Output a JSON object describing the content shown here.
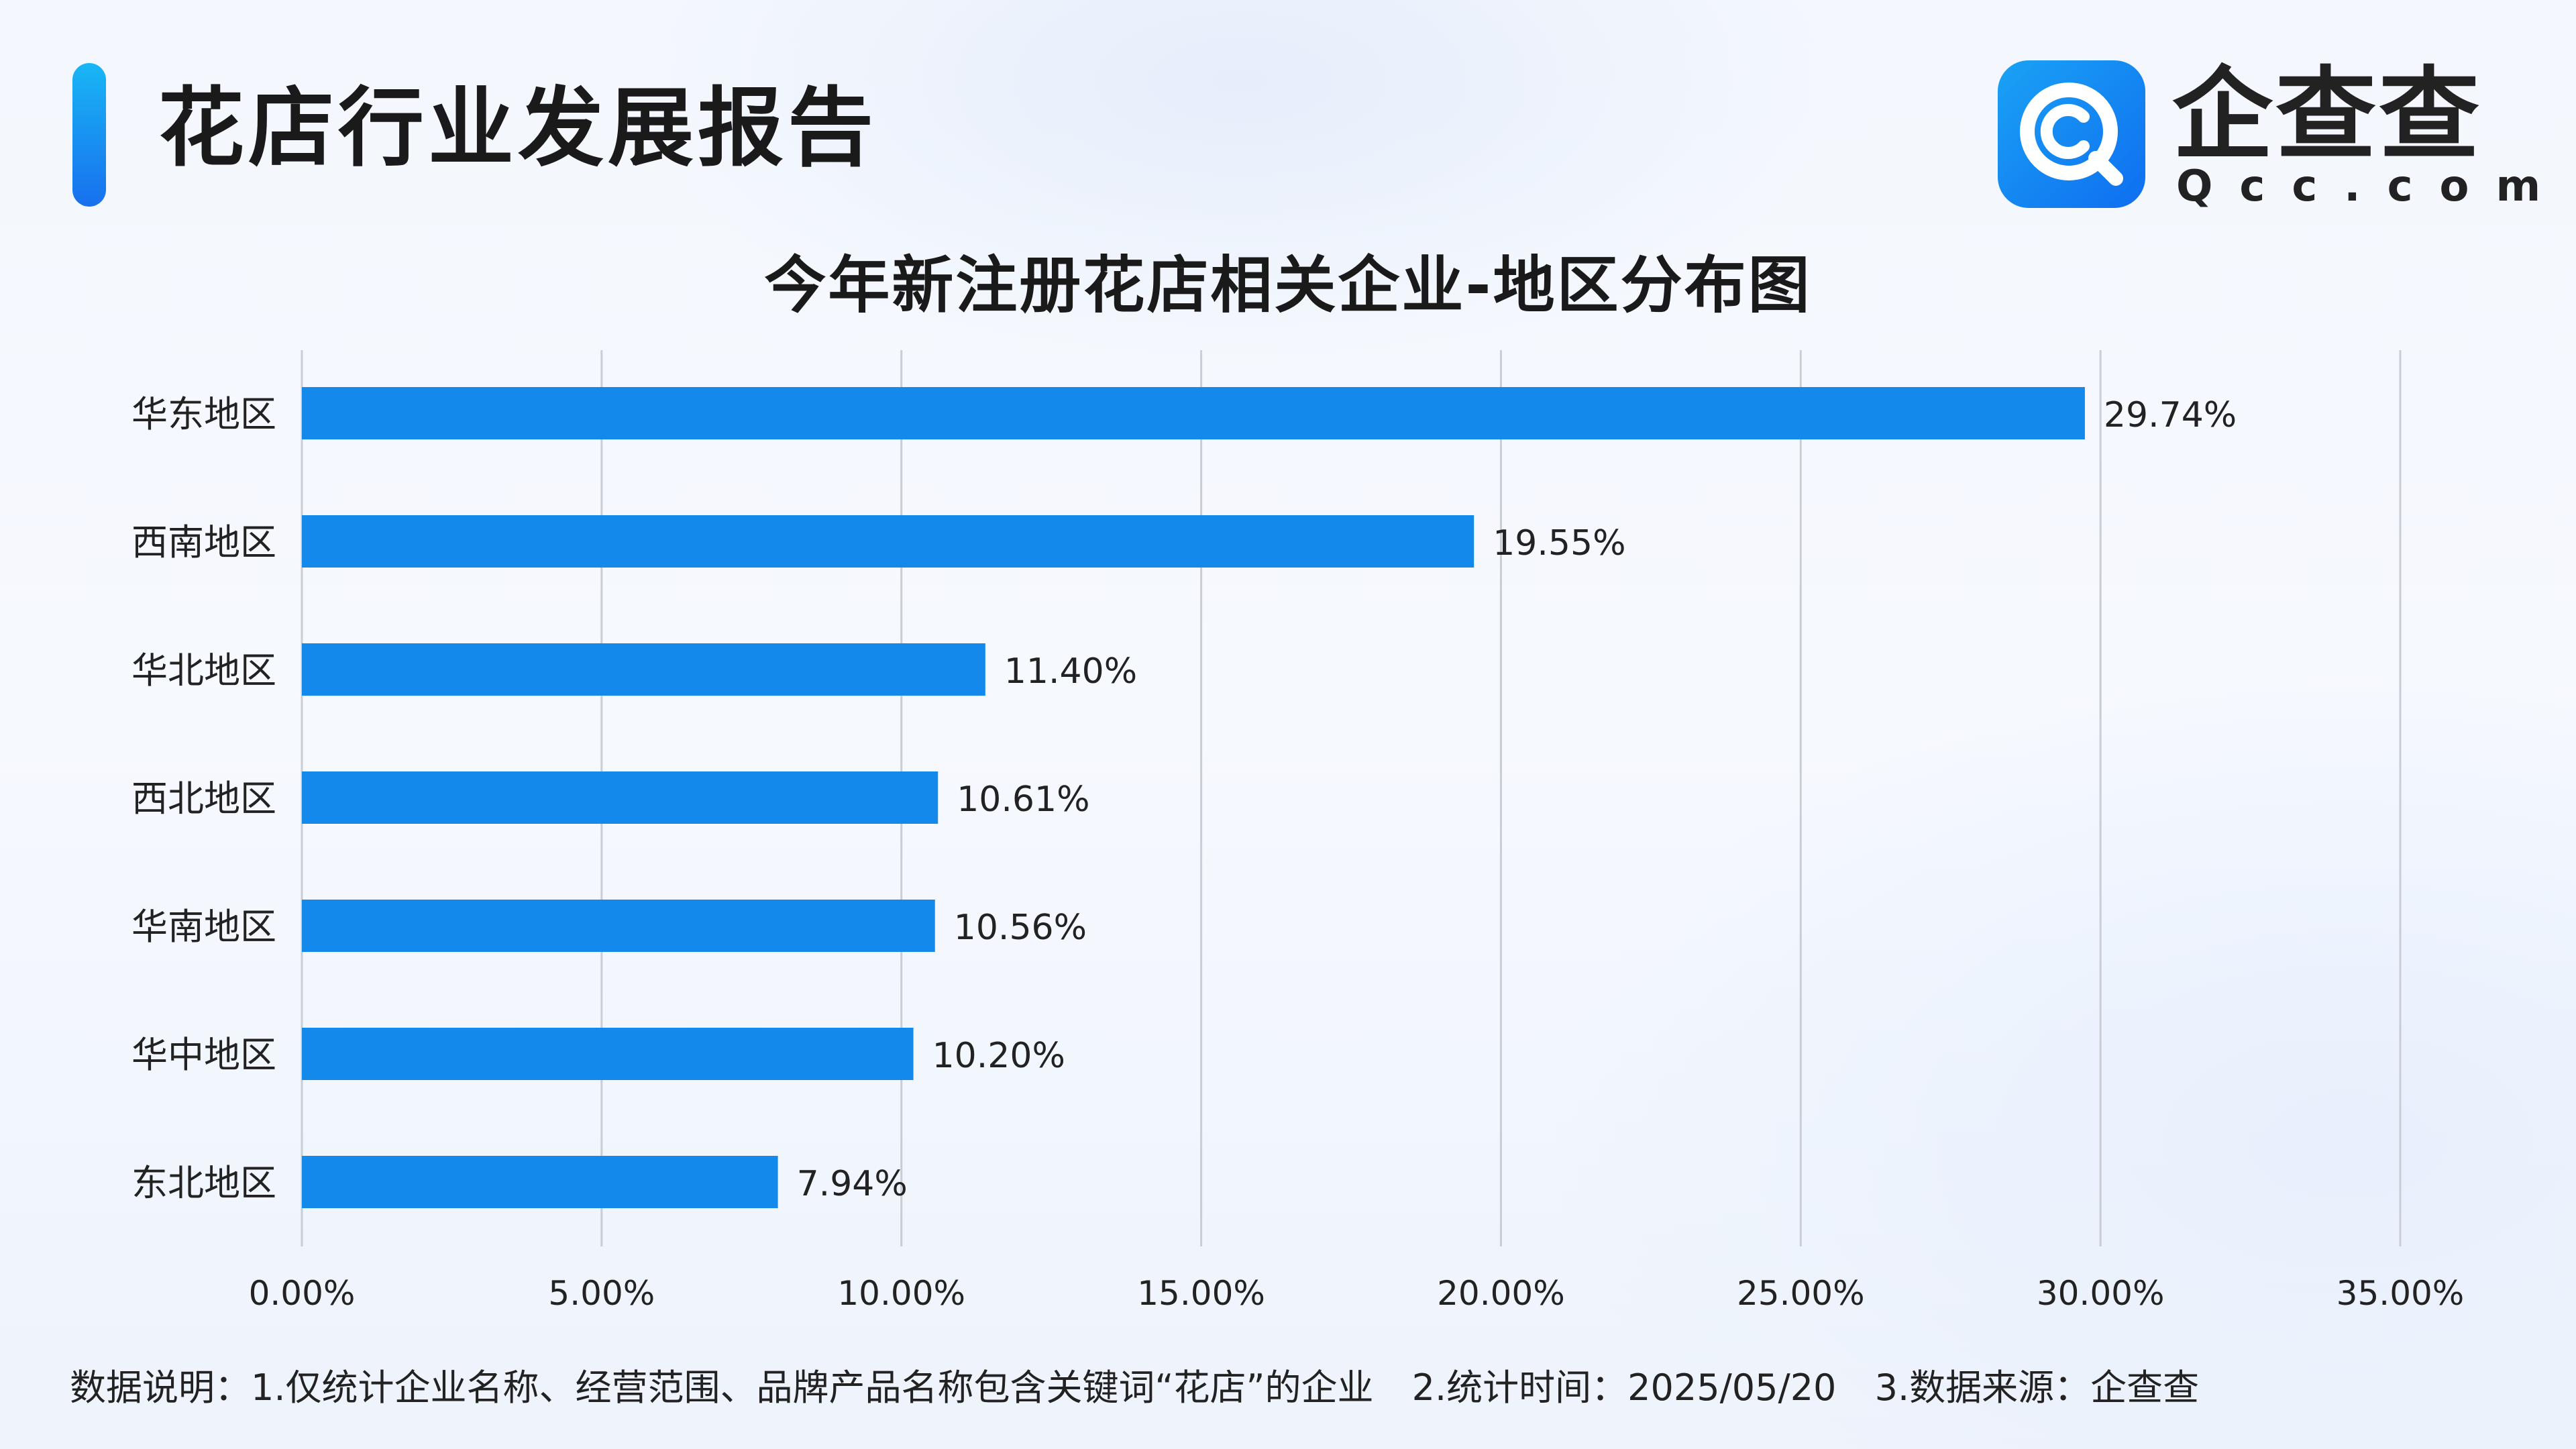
{
  "header": {
    "title": "花店行业发展报告",
    "logo_name": "企查查",
    "logo_domain": "Qcc.com",
    "logo_icon": "qcc-logo-icon"
  },
  "colors": {
    "bar": "#1489ec",
    "grid": "#c9cdd4",
    "accent_top": "#19b6f5",
    "accent_bottom": "#1870ee"
  },
  "chart_data": {
    "type": "bar",
    "orientation": "horizontal",
    "title": "今年新注册花店相关企业-地区分布图",
    "categories": [
      "华东地区",
      "西南地区",
      "华北地区",
      "西北地区",
      "华南地区",
      "华中地区",
      "东北地区"
    ],
    "values": [
      29.74,
      19.55,
      11.4,
      10.61,
      10.56,
      10.2,
      7.94
    ],
    "value_labels": [
      "29.74%",
      "19.55%",
      "11.40%",
      "10.61%",
      "10.56%",
      "10.20%",
      "7.94%"
    ],
    "xlim": [
      0,
      35
    ],
    "x_ticks": [
      0,
      5,
      10,
      15,
      20,
      25,
      30,
      35
    ],
    "x_tick_labels": [
      "0.00%",
      "5.00%",
      "10.00%",
      "15.00%",
      "20.00%",
      "25.00%",
      "30.00%",
      "35.00%"
    ],
    "xlabel": "",
    "ylabel": "",
    "grid": "vertical",
    "legend": "none"
  },
  "footnote": {
    "note1": "数据说明：1.仅统计企业名称、经营范围、品牌产品名称包含关键词“花店”的企业",
    "note2": "2.统计时间：2025/05/20",
    "note3": "3.数据来源：企查查"
  }
}
